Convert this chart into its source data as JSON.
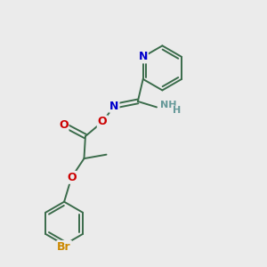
{
  "bg_color": "#ebebeb",
  "bond_color": "#3a6b4a",
  "N_color": "#0000cc",
  "O_color": "#cc0000",
  "Br_color": "#cc8800",
  "NH_color": "#669999",
  "figsize": [
    3.0,
    3.0
  ],
  "dpi": 100,
  "xlim": [
    0,
    10
  ],
  "ylim": [
    0,
    10
  ]
}
